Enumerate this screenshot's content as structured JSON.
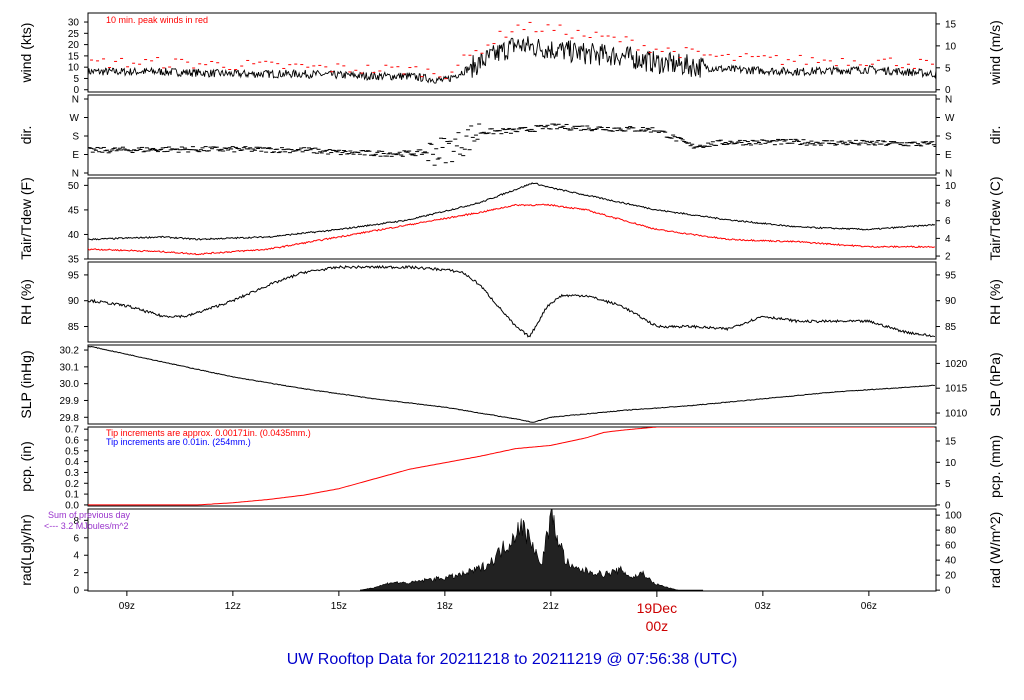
{
  "title": "UW Rooftop Data for 20211218  to  20211219 @ 07:56:38  (UTC)",
  "x_axis": {
    "ticks": [
      "09z",
      "12z",
      "15z",
      "18z",
      "21z",
      "03z",
      "06z"
    ],
    "tick_hours": [
      9,
      12,
      15,
      18,
      21,
      27,
      30
    ],
    "day_marker": {
      "hour": 24,
      "line1": "19Dec",
      "line2": "00z"
    },
    "range_hours": [
      7.9,
      31.9
    ]
  },
  "colors": {
    "series": "#000000",
    "peak": "#ff0000",
    "dewpoint": "#ff0000",
    "precip": "#ff0000",
    "note_red": "#ff0000",
    "note_blue": "#0000ff",
    "note_purple": "#9933cc",
    "title": "#0000cc"
  },
  "chart_data": [
    {
      "id": "wind",
      "type": "line",
      "ylabel_left": "wind (kts)",
      "ylabel_right": "wind (m/s)",
      "left_ticks": [
        "0",
        "5",
        "10",
        "15",
        "20",
        "25",
        "30"
      ],
      "right_ticks": [
        "0",
        "5",
        "10",
        "15"
      ],
      "ylim": [
        -1,
        34
      ],
      "annotation": "10 min. peak winds in red",
      "series": [
        {
          "role": "wind speed",
          "x_hours": [
            8,
            10,
            12,
            14,
            16,
            17,
            18,
            19,
            20,
            21,
            22,
            23,
            24,
            26,
            28,
            30,
            31.9
          ],
          "values": [
            8,
            8,
            7,
            7,
            6,
            6,
            4,
            12,
            20,
            18,
            16,
            15,
            12,
            9,
            8,
            9,
            7
          ]
        },
        {
          "role": "10 min peak",
          "x_hours": [
            8,
            10,
            12,
            14,
            16,
            17,
            18,
            19,
            20,
            21,
            22,
            23,
            24,
            26,
            28,
            30,
            31.9
          ],
          "values": [
            12,
            12,
            11,
            10,
            9,
            9,
            7,
            18,
            28,
            27,
            24,
            22,
            18,
            14,
            13,
            13,
            11
          ]
        }
      ]
    },
    {
      "id": "direction",
      "type": "scatter",
      "ylabel_left": "dir.",
      "ylabel_right": "dir.",
      "left_ticks": [
        "N",
        "E",
        "S",
        "W",
        "N"
      ],
      "right_ticks": [
        "N",
        "E",
        "S",
        "W",
        "N"
      ],
      "ylim": [
        0,
        360
      ],
      "series": [
        {
          "role": "wind direction (deg)",
          "x_hours": [
            8,
            10,
            12,
            14,
            15,
            16,
            17,
            17.8,
            18.3,
            19,
            20,
            21,
            22,
            23,
            24,
            25,
            26,
            28,
            30,
            31.9
          ],
          "values": [
            110,
            115,
            115,
            112,
            100,
            95,
            95,
            105,
            130,
            200,
            205,
            225,
            220,
            215,
            210,
            130,
            150,
            150,
            145,
            140
          ]
        }
      ]
    },
    {
      "id": "temperature",
      "type": "line",
      "ylabel_left": "Tair/Tdew (F)",
      "ylabel_right": "Tair/Tdew (C)",
      "left_ticks": [
        "35",
        "40",
        "45",
        "50"
      ],
      "right_ticks": [
        "2",
        "4",
        "6",
        "8",
        "10"
      ],
      "ylim": [
        35,
        51.5
      ],
      "series": [
        {
          "role": "air temperature",
          "x_hours": [
            8,
            10,
            11,
            13,
            15,
            17,
            19,
            20.5,
            21,
            22,
            24,
            26,
            28,
            30,
            31.9
          ],
          "values": [
            39,
            39.5,
            39,
            39.5,
            41,
            43,
            46.5,
            50.5,
            49.5,
            48,
            45,
            43,
            41.5,
            41,
            42
          ]
        },
        {
          "role": "dew point",
          "x_hours": [
            8,
            10,
            11,
            13,
            15,
            17,
            19,
            20,
            21,
            22,
            24,
            26,
            28,
            30,
            31.9
          ],
          "values": [
            37,
            36.5,
            36,
            37,
            39.5,
            42,
            44.5,
            46,
            46,
            45,
            41,
            39,
            38.5,
            37.5,
            37.5
          ]
        }
      ]
    },
    {
      "id": "rh",
      "type": "line",
      "ylabel_left": "RH (%)",
      "ylabel_right": "RH (%)",
      "left_ticks": [
        "85",
        "90",
        "95"
      ],
      "right_ticks": [
        "85",
        "90",
        "95"
      ],
      "ylim": [
        82,
        97.5
      ],
      "series": [
        {
          "role": "relative humidity",
          "x_hours": [
            8,
            9,
            10,
            10.7,
            12,
            13,
            14,
            15,
            16,
            17,
            18,
            18.5,
            19,
            20,
            20.4,
            20.9,
            21.3,
            22,
            23,
            24,
            25,
            26,
            27,
            28,
            29,
            30,
            31,
            31.9
          ],
          "values": [
            90,
            89,
            87,
            87,
            90,
            93,
            95.5,
            96.5,
            96.5,
            96.5,
            96,
            95.5,
            93,
            85,
            83,
            89,
            91,
            91,
            89,
            85,
            85,
            84.5,
            87,
            86,
            86,
            86,
            84,
            83
          ]
        }
      ]
    },
    {
      "id": "pressure",
      "type": "line",
      "ylabel_left": "SLP (inHg)",
      "ylabel_right": "SLP (hPa)",
      "left_ticks": [
        "29.8",
        "29.9",
        "30.0",
        "30.1",
        "30.2"
      ],
      "right_ticks": [
        "1010",
        "1015",
        "1020"
      ],
      "ylim": [
        29.76,
        30.23
      ],
      "series": [
        {
          "role": "sea level pressure",
          "x_hours": [
            8,
            10,
            12,
            14,
            16,
            18,
            20,
            20.5,
            21,
            23,
            25,
            27,
            29,
            31.9
          ],
          "values": [
            30.22,
            30.13,
            30.04,
            29.97,
            29.91,
            29.86,
            29.79,
            29.77,
            29.8,
            29.84,
            29.87,
            29.91,
            29.95,
            29.99
          ]
        }
      ]
    },
    {
      "id": "precip",
      "type": "area",
      "ylabel_left": "pcp. (in)",
      "ylabel_right": "pcp. (mm)",
      "left_ticks": [
        "0.0",
        "0.1",
        "0.2",
        "0.3",
        "0.4",
        "0.5",
        "0.6",
        "0.7"
      ],
      "right_ticks": [
        "0",
        "5",
        "10",
        "15"
      ],
      "ylim": [
        -0.01,
        0.72
      ],
      "annotation_red": "Tip increments are approx. 0.00171in. (0.0435mm.)",
      "annotation_blue": "Tip increments are 0.01in. (254mm.)",
      "series": [
        {
          "role": "accumulated precipitation",
          "x_hours": [
            8,
            11,
            12,
            13,
            14,
            15,
            16,
            17,
            18,
            19,
            20,
            21,
            22,
            22.5,
            23,
            24,
            25,
            26,
            28,
            31.9
          ],
          "values": [
            0,
            0,
            0.02,
            0.05,
            0.09,
            0.15,
            0.24,
            0.33,
            0.39,
            0.45,
            0.52,
            0.55,
            0.62,
            0.67,
            0.69,
            0.72,
            0.72,
            0.72,
            0.72,
            0.72
          ]
        }
      ]
    },
    {
      "id": "radiation",
      "type": "area",
      "ylabel_left": "rad(Lgly/hr)",
      "ylabel_right": "rad (W/m^2)",
      "left_ticks": [
        "0",
        "2",
        "4",
        "6",
        "8"
      ],
      "right_ticks": [
        "0",
        "20",
        "40",
        "60",
        "80",
        "100"
      ],
      "ylim": [
        -0.1,
        9.3
      ],
      "annotation_line1": "Sum of previous day",
      "annotation_line2": "<--- 3.2  MJoules/m^2",
      "series": [
        {
          "role": "solar radiation",
          "x_hours": [
            15.6,
            16,
            16.5,
            17,
            17.5,
            18,
            18.5,
            19,
            19.3,
            19.6,
            19.9,
            20.1,
            20.3,
            20.5,
            20.7,
            20.9,
            21,
            21.2,
            21.4,
            21.6,
            22,
            22.5,
            23,
            23.3,
            23.6,
            23.9,
            24.3,
            24.6
          ],
          "values": [
            0,
            0.3,
            0.9,
            0.8,
            1.2,
            1.4,
            1.8,
            2.5,
            3.2,
            4.6,
            5.8,
            7.6,
            6.5,
            5.5,
            2.6,
            6.2,
            8.6,
            6.0,
            3.5,
            2.5,
            2.2,
            1.8,
            2.3,
            1.4,
            2.0,
            0.8,
            0.3,
            0
          ]
        }
      ]
    }
  ]
}
